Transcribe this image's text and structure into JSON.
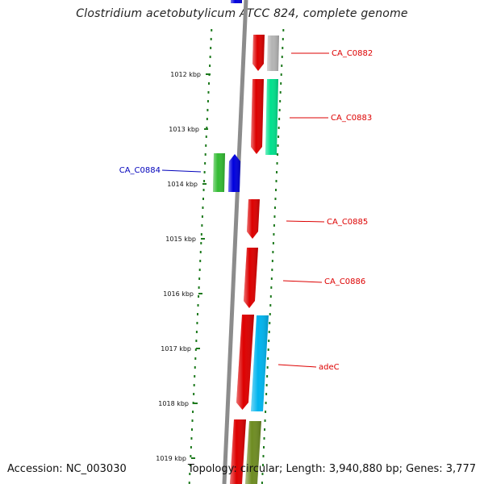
{
  "title": "Clostridium acetobutylicum ATCC 824, complete genome",
  "footer": {
    "accession": "Accession: NC_003030",
    "summary": "Topology: circular; Length: 3,940,880 bp; Genes: 3,777"
  },
  "colors": {
    "backbone": "#8c8c8c",
    "tick": "#1e7a1e",
    "forward_label": "#dd0000",
    "reverse_label": "#0000bb"
  },
  "ticks": [
    "1012 kbp",
    "1013 kbp",
    "1014 kbp",
    "1015 kbp",
    "1016 kbp",
    "1017 kbp",
    "1018 kbp",
    "1019 kbp"
  ],
  "genes": [
    {
      "label": "",
      "color": "#0000dd",
      "strand": "reverse"
    },
    {
      "label": "CA_C0882",
      "color": "#dd0000",
      "strand": "forward"
    },
    {
      "label": "",
      "color": "#b4b4b4",
      "strand": "forward"
    },
    {
      "label": "CA_C0883",
      "color": "#dd0000",
      "strand": "forward"
    },
    {
      "label": "",
      "color": "#00e08c",
      "strand": "forward"
    },
    {
      "label": "CA_C0884",
      "color": "#33bb33",
      "strand": "reverse"
    },
    {
      "label": "",
      "color": "#0000dd",
      "strand": "reverse"
    },
    {
      "label": "CA_C0885",
      "color": "#dd0000",
      "strand": "forward"
    },
    {
      "label": "CA_C0886",
      "color": "#dd0000",
      "strand": "forward"
    },
    {
      "label": "adeC",
      "color": "#dd0000",
      "strand": "forward"
    },
    {
      "label": "",
      "color": "#00b4ee",
      "strand": "forward"
    },
    {
      "label": "",
      "color": "#dd0000",
      "strand": "forward"
    },
    {
      "label": "",
      "color": "#6e8c22",
      "strand": "forward"
    }
  ]
}
